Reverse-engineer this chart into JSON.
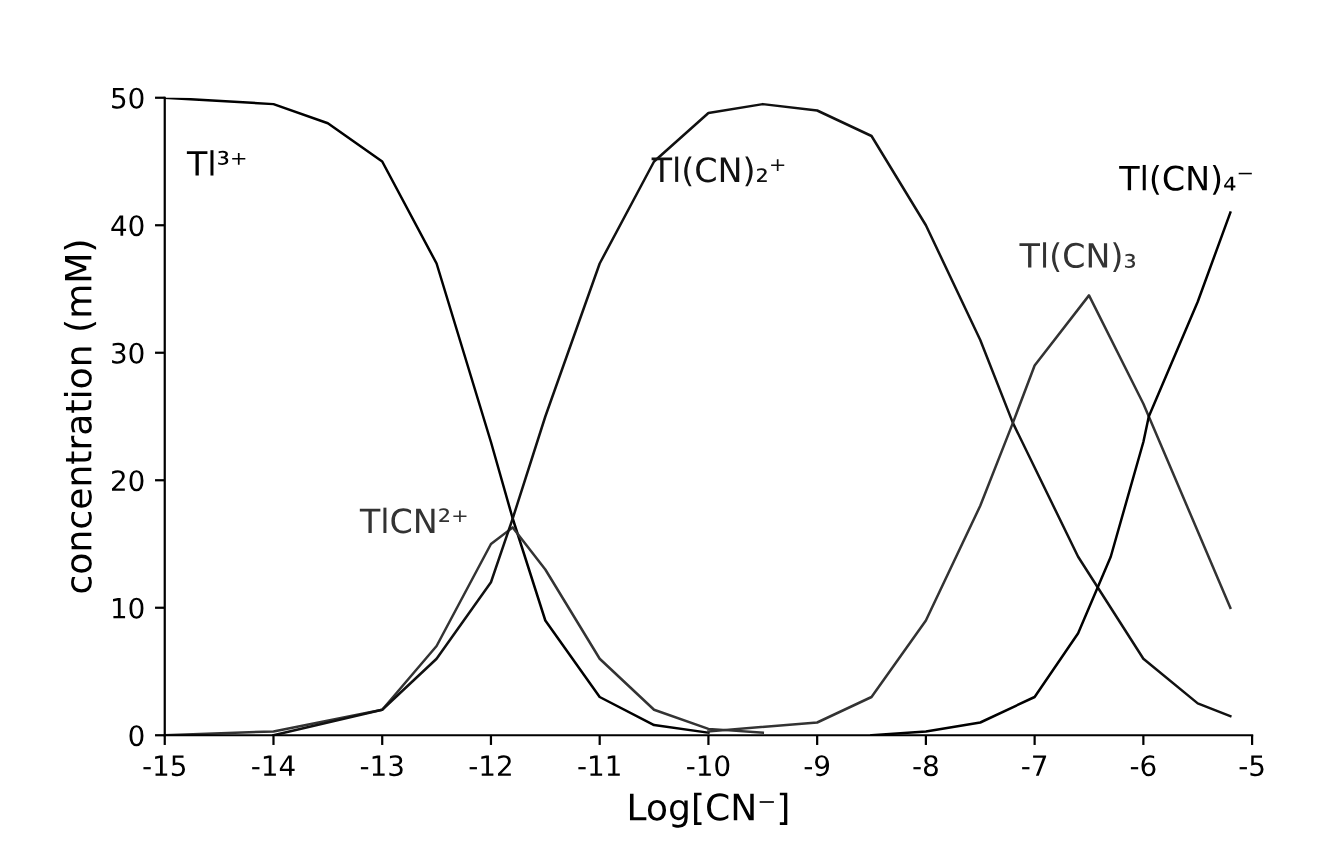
{
  "chart_data": {
    "type": "line",
    "xlabel": "Log[CN⁻]",
    "ylabel": "concentration (mM)",
    "xlim": [
      -15,
      -5
    ],
    "ylim": [
      0,
      50
    ],
    "xticks": [
      -15,
      -14,
      -13,
      -12,
      -11,
      -10,
      -9,
      -8,
      -7,
      -6,
      -5
    ],
    "yticks": [
      0,
      10,
      20,
      30,
      40,
      50
    ],
    "grid": false,
    "legend": false,
    "marker": "none",
    "line_style": "solid",
    "series": [
      {
        "name": "Tl³⁺",
        "color": "#000000",
        "x": [
          -15,
          -14,
          -13.5,
          -13,
          -12.5,
          -12,
          -11.8,
          -11.5,
          -11,
          -10.5,
          -10
        ],
        "values": [
          50,
          49.5,
          48,
          45,
          37,
          23,
          17,
          9,
          3,
          0.8,
          0.2
        ]
      },
      {
        "name": "TlCN²⁺",
        "color": "#333333",
        "x": [
          -15,
          -14,
          -13,
          -12.5,
          -12,
          -11.8,
          -11.5,
          -11,
          -10.5,
          -10,
          -9.5
        ],
        "values": [
          0,
          0.3,
          2,
          7,
          15,
          16.3,
          13,
          6,
          2,
          0.5,
          0.2
        ]
      },
      {
        "name": "Tl(CN)₂⁺",
        "color": "#111111",
        "x": [
          -14,
          -13,
          -12.5,
          -12,
          -11.8,
          -11.5,
          -11,
          -10.5,
          -10,
          -9.5,
          -9,
          -8.5,
          -8,
          -7.5,
          -7.2,
          -7,
          -6.6,
          -6,
          -5.5,
          -5.2
        ],
        "values": [
          0,
          2,
          6,
          12,
          17,
          25,
          37,
          45,
          48.8,
          49.5,
          49,
          47,
          40,
          31,
          24.5,
          21,
          14,
          6,
          2.5,
          1.5
        ]
      },
      {
        "name": "Tl(CN)₃",
        "color": "#333333",
        "x": [
          -10,
          -9,
          -8.5,
          -8,
          -7.5,
          -7.2,
          -7,
          -6.5,
          -6,
          -5.95,
          -5.5,
          -5.2
        ],
        "values": [
          0.3,
          1,
          3,
          9,
          18,
          24.5,
          29,
          34.5,
          26,
          25,
          16,
          10
        ]
      },
      {
        "name": "Tl(CN)₄⁻",
        "color": "#000000",
        "x": [
          -8.5,
          -8,
          -7.5,
          -7,
          -6.6,
          -6.3,
          -6,
          -5.95,
          -5.5,
          -5.2
        ],
        "values": [
          0,
          0.3,
          1,
          3,
          8,
          14,
          23,
          25,
          34,
          41
        ]
      }
    ]
  }
}
